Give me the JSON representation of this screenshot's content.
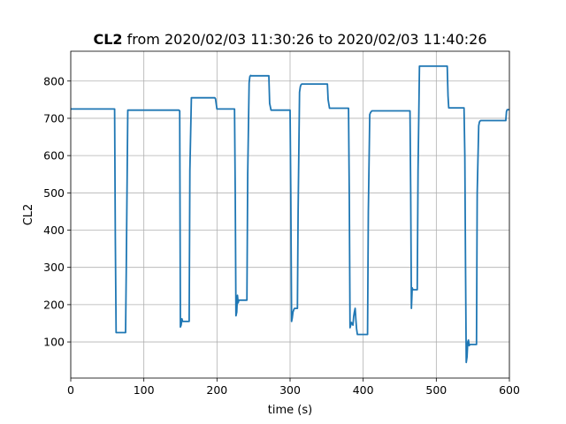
{
  "chart_data": {
    "type": "line",
    "title_bold": "CL2",
    "title_rest": " from 2020/02/03 11:30:26 to 2020/02/03 11:40:26",
    "xlabel": "time (s)",
    "ylabel": "CL2",
    "xlim": [
      0,
      600
    ],
    "ylim": [
      3,
      880
    ],
    "xticks": [
      0,
      100,
      200,
      300,
      400,
      500,
      600
    ],
    "yticks": [
      100,
      200,
      300,
      400,
      500,
      600,
      700,
      800
    ],
    "grid": true,
    "series": [
      {
        "color": "#1f77b4",
        "x": [
          0,
          60,
          61,
          62,
          75,
          76,
          78,
          148,
          149,
          150,
          151,
          152,
          153,
          162,
          163,
          165,
          197,
          198,
          200,
          224,
          225,
          226,
          227,
          228,
          229,
          230,
          241,
          242,
          244,
          245,
          246,
          247,
          271,
          272,
          274,
          300,
          301,
          302,
          303,
          304,
          305,
          306,
          310,
          311,
          313,
          314,
          315,
          316,
          351,
          352,
          354,
          380,
          381,
          382,
          384,
          386,
          387,
          388,
          389,
          390,
          391,
          392,
          406,
          407,
          409,
          410,
          411,
          412,
          464,
          465,
          466,
          467,
          468,
          474,
          475,
          477,
          515,
          516,
          517,
          518,
          538,
          539,
          540,
          541,
          542,
          543,
          544,
          545,
          546,
          555,
          556,
          558,
          559,
          560,
          561,
          595,
          596,
          597,
          600
        ],
        "y": [
          725,
          725,
          380,
          125,
          125,
          300,
          722,
          722,
          720,
          140,
          145,
          162,
          155,
          155,
          560,
          755,
          755,
          752,
          725,
          725,
          500,
          170,
          180,
          225,
          205,
          212,
          212,
          550,
          795,
          812,
          815,
          814,
          814,
          740,
          722,
          722,
          500,
          155,
          165,
          180,
          186,
          190,
          190,
          450,
          770,
          785,
          790,
          792,
          792,
          750,
          727,
          727,
          480,
          138,
          152,
          145,
          168,
          180,
          190,
          160,
          135,
          120,
          120,
          450,
          710,
          715,
          718,
          720,
          720,
          500,
          190,
          245,
          240,
          240,
          560,
          840,
          840,
          760,
          728,
          728,
          728,
          600,
          300,
          45,
          60,
          100,
          105,
          90,
          93,
          93,
          500,
          680,
          690,
          693,
          694,
          694,
          718,
          723,
          723
        ]
      }
    ]
  }
}
